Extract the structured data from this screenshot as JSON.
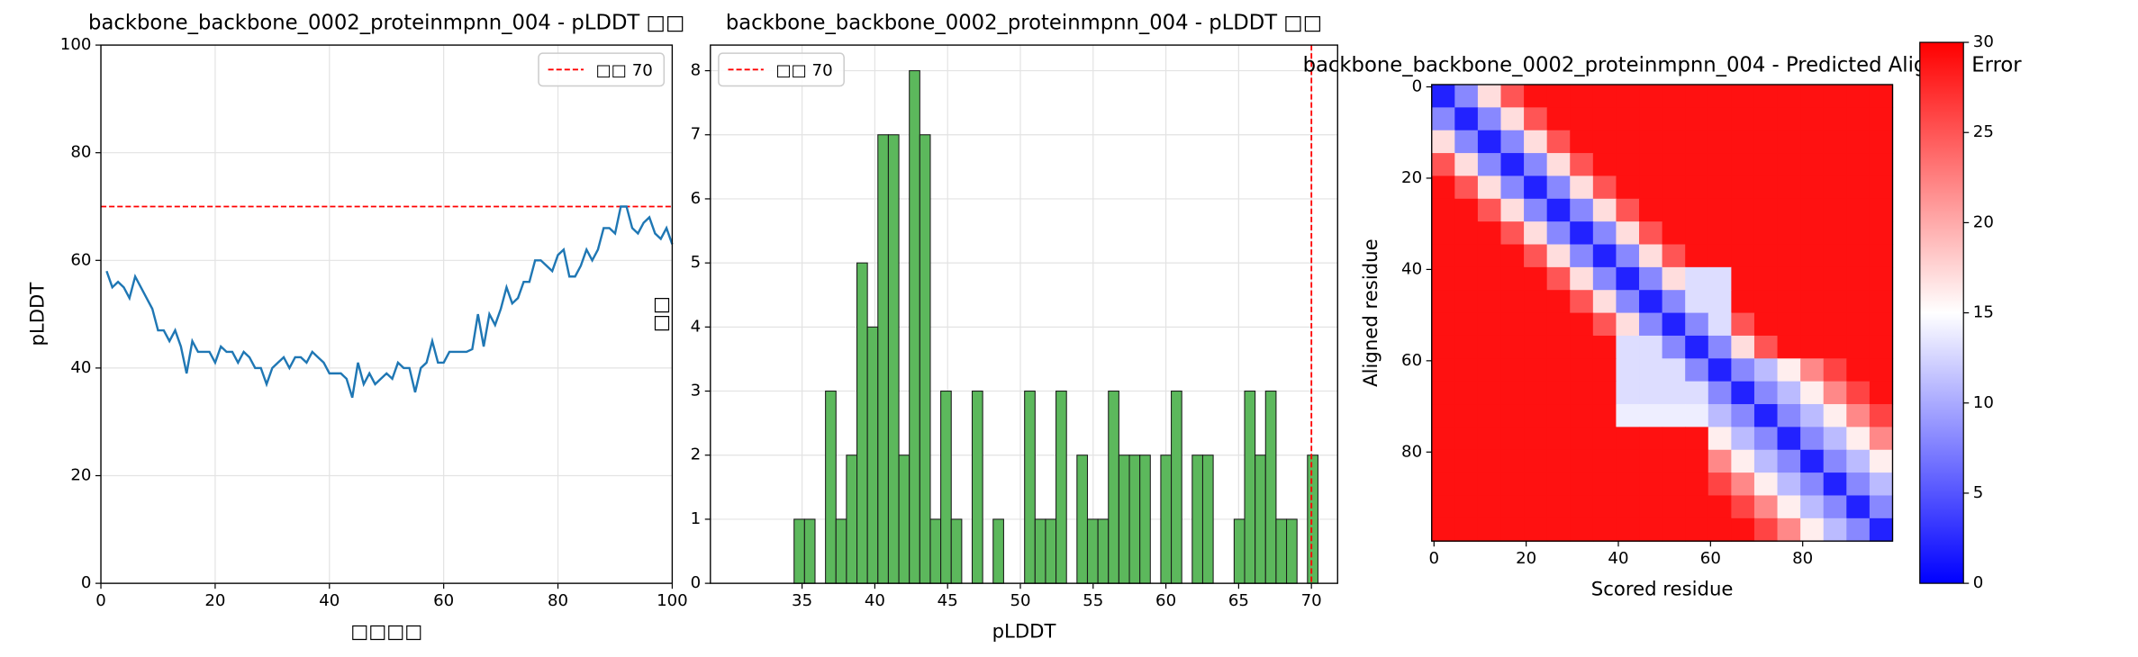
{
  "chart_data": [
    {
      "type": "line",
      "title": "backbone_backbone_0002_proteinmpnn_004 - pLDDT □□",
      "xlabel": "□□□□",
      "ylabel": "pLDDT",
      "x": [
        1,
        2,
        3,
        4,
        5,
        6,
        7,
        8,
        9,
        10,
        11,
        12,
        13,
        14,
        15,
        16,
        17,
        18,
        19,
        20,
        21,
        22,
        23,
        24,
        25,
        26,
        27,
        28,
        29,
        30,
        31,
        32,
        33,
        34,
        35,
        36,
        37,
        38,
        39,
        40,
        41,
        42,
        43,
        44,
        45,
        46,
        47,
        48,
        49,
        50,
        51,
        52,
        53,
        54,
        55,
        56,
        57,
        58,
        59,
        60,
        61,
        62,
        63,
        64,
        65,
        66,
        67,
        68,
        69,
        70,
        71,
        72,
        73,
        74,
        75,
        76,
        77,
        78,
        79,
        80,
        81,
        82,
        83,
        84,
        85,
        86,
        87,
        88,
        89,
        90,
        91,
        92,
        93,
        94,
        95,
        96,
        97,
        98,
        99,
        100
      ],
      "values": [
        58,
        55,
        56,
        55,
        53,
        57,
        55,
        53,
        51,
        47,
        47,
        45,
        47,
        44,
        39,
        45,
        43,
        43,
        43,
        41,
        44,
        43,
        43,
        41,
        43,
        42,
        40,
        40,
        37,
        40,
        41,
        42,
        40,
        42,
        42,
        41,
        43,
        42,
        41,
        39,
        39,
        39,
        38,
        34.5,
        41,
        37,
        39,
        37,
        38,
        39,
        38,
        41,
        40,
        40,
        35.5,
        40,
        41,
        45,
        41,
        41,
        43,
        43,
        43,
        43,
        43.5,
        50,
        44,
        50,
        48,
        51,
        55,
        52,
        53,
        56,
        56,
        60,
        60,
        59,
        58,
        61,
        62,
        57,
        57,
        59,
        62,
        60,
        62,
        66,
        66,
        65,
        70,
        70,
        66,
        65,
        67,
        68,
        65,
        64,
        66,
        63
      ],
      "color": "#1f77b4",
      "threshold": 70,
      "threshold_label": "□□ 70",
      "threshold_color": "#ff0000",
      "xlim": [
        0,
        100
      ],
      "xticks": [
        0,
        20,
        40,
        60,
        80,
        100
      ],
      "ylim": [
        0,
        100
      ],
      "yticks": [
        0,
        20,
        40,
        60,
        80,
        100
      ],
      "grid": true,
      "legend": "upper right"
    },
    {
      "type": "histogram",
      "title": "backbone_backbone_0002_proteinmpnn_004 - pLDDT □□",
      "xlabel": "pLDDT",
      "ylabel": "□□",
      "bins": [
        34.45,
        35.17,
        35.89,
        36.61,
        37.33,
        38.05,
        38.77,
        39.49,
        40.21,
        40.93,
        41.65,
        42.37,
        43.09,
        43.81,
        44.53,
        45.25,
        45.97,
        46.69,
        47.41,
        48.13,
        48.85,
        49.57,
        50.29,
        51.01,
        51.73,
        52.45,
        53.17,
        53.89,
        54.61,
        55.33,
        56.05,
        56.77,
        57.49,
        58.21,
        58.93,
        59.65,
        60.37,
        61.09,
        61.81,
        62.53,
        63.25,
        63.97,
        64.69,
        65.41,
        66.13,
        66.85,
        67.57,
        68.29,
        69.01,
        69.73,
        70.45
      ],
      "values": [
        1,
        1,
        0,
        3,
        1,
        2,
        5,
        4,
        7,
        7,
        2,
        8,
        7,
        1,
        3,
        1,
        0,
        3,
        0,
        1,
        0,
        0,
        3,
        1,
        1,
        3,
        0,
        2,
        1,
        1,
        3,
        2,
        2,
        2,
        0,
        2,
        3,
        0,
        2,
        2,
        0,
        0,
        1,
        3,
        2,
        3,
        1,
        1,
        0,
        2
      ],
      "color": "#5cb85c",
      "edgecolor": "#1a1a1a",
      "threshold": 70,
      "threshold_label": "□□ 70",
      "threshold_color": "#ff0000",
      "xlim": [
        28.7,
        71.8
      ],
      "xticks": [
        35,
        40,
        45,
        50,
        55,
        60,
        65,
        70
      ],
      "ylim": [
        0,
        8.4
      ],
      "yticks": [
        0,
        1,
        2,
        3,
        4,
        5,
        6,
        7,
        8
      ],
      "grid": true,
      "legend": "upper left"
    },
    {
      "type": "heatmap",
      "title": "backbone_backbone_0002_proteinmpnn_004 - Predicted Aligned Error",
      "xlabel": "Scored residue",
      "ylabel": "Aligned residue",
      "matrix": [
        [
          2,
          8,
          17,
          25,
          29,
          29,
          29,
          29,
          29,
          29,
          29,
          29,
          29,
          29,
          29,
          29,
          29,
          29,
          29,
          29
        ],
        [
          8,
          2,
          8,
          17,
          25,
          29,
          29,
          29,
          29,
          29,
          29,
          29,
          29,
          29,
          29,
          29,
          29,
          29,
          29,
          29
        ],
        [
          17,
          8,
          2,
          8,
          17,
          25,
          29,
          29,
          29,
          29,
          29,
          29,
          29,
          29,
          29,
          29,
          29,
          29,
          29,
          29
        ],
        [
          25,
          17,
          8,
          2,
          8,
          17,
          25,
          29,
          29,
          29,
          29,
          29,
          29,
          29,
          29,
          29,
          29,
          29,
          29,
          29
        ],
        [
          29,
          25,
          17,
          8,
          2,
          8,
          17,
          25,
          29,
          29,
          29,
          29,
          29,
          29,
          29,
          29,
          29,
          29,
          29,
          29
        ],
        [
          29,
          29,
          25,
          17,
          8,
          2,
          8,
          17,
          25,
          29,
          29,
          29,
          29,
          29,
          29,
          29,
          29,
          29,
          29,
          29
        ],
        [
          29,
          29,
          29,
          25,
          17,
          8,
          2,
          8,
          17,
          25,
          29,
          29,
          29,
          29,
          29,
          29,
          29,
          29,
          29,
          29
        ],
        [
          29,
          29,
          29,
          29,
          25,
          17,
          8,
          2,
          8,
          17,
          25,
          29,
          29,
          29,
          29,
          29,
          29,
          29,
          29,
          29
        ],
        [
          29,
          29,
          29,
          29,
          29,
          25,
          17,
          8,
          2,
          8,
          17,
          13,
          13,
          29,
          29,
          29,
          29,
          29,
          29,
          29
        ],
        [
          29,
          29,
          29,
          29,
          29,
          29,
          25,
          17,
          8,
          2,
          8,
          13,
          13,
          29,
          29,
          29,
          29,
          29,
          29,
          29
        ],
        [
          29,
          29,
          29,
          29,
          29,
          29,
          29,
          25,
          17,
          8,
          2,
          8,
          13,
          25,
          29,
          29,
          29,
          29,
          29,
          29
        ],
        [
          29,
          29,
          29,
          29,
          29,
          29,
          29,
          29,
          13,
          13,
          8,
          2,
          8,
          17,
          25,
          29,
          29,
          29,
          29,
          29
        ],
        [
          29,
          29,
          29,
          29,
          29,
          29,
          29,
          29,
          13,
          13,
          13,
          8,
          2,
          8,
          11,
          16,
          22,
          26,
          29,
          29
        ],
        [
          29,
          29,
          29,
          29,
          29,
          29,
          29,
          29,
          13,
          13,
          13,
          13,
          8,
          2,
          8,
          11,
          16,
          22,
          26,
          29
        ],
        [
          29,
          29,
          29,
          29,
          29,
          29,
          29,
          29,
          14,
          14,
          14,
          14,
          11,
          8,
          2,
          8,
          11,
          16,
          22,
          26
        ],
        [
          29,
          29,
          29,
          29,
          29,
          29,
          29,
          29,
          29,
          29,
          29,
          29,
          16,
          11,
          8,
          2,
          8,
          11,
          16,
          22
        ],
        [
          29,
          29,
          29,
          29,
          29,
          29,
          29,
          29,
          29,
          29,
          29,
          29,
          22,
          16,
          11,
          8,
          2,
          8,
          11,
          16
        ],
        [
          29,
          29,
          29,
          29,
          29,
          29,
          29,
          29,
          29,
          29,
          29,
          29,
          26,
          22,
          16,
          11,
          8,
          2,
          8,
          11
        ],
        [
          29,
          29,
          29,
          29,
          29,
          29,
          29,
          29,
          29,
          29,
          29,
          29,
          29,
          26,
          22,
          16,
          11,
          8,
          2,
          8
        ],
        [
          29,
          29,
          29,
          29,
          29,
          29,
          29,
          29,
          29,
          29,
          29,
          29,
          29,
          29,
          26,
          22,
          16,
          11,
          8,
          2
        ]
      ],
      "xlim": [
        -0.5,
        99.5
      ],
      "xticks": [
        0,
        20,
        40,
        60,
        80
      ],
      "ylim": [
        99.5,
        -0.5
      ],
      "yticks": [
        0,
        20,
        40,
        60,
        80
      ],
      "colormap": [
        "#0000ff",
        "#ffffff",
        "#ff0000"
      ],
      "clim": [
        0,
        30
      ],
      "cticks": [
        0,
        5,
        10,
        15,
        20,
        25,
        30
      ]
    }
  ]
}
